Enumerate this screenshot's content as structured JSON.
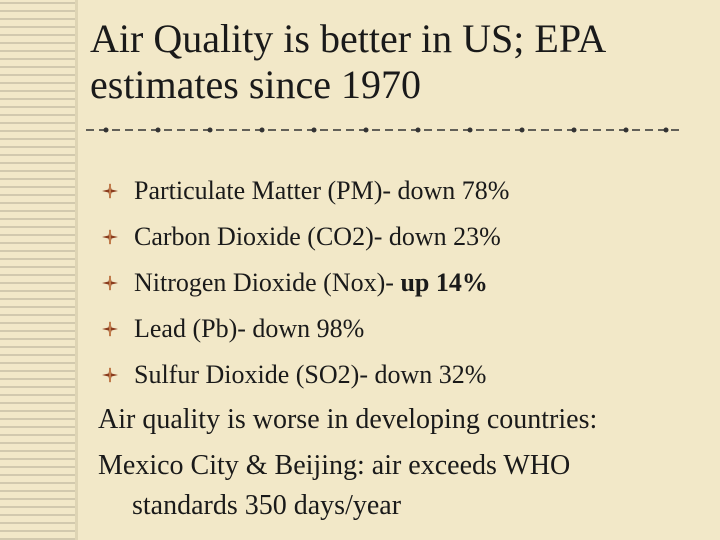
{
  "title": "Air Quality is better in US; EPA estimates since 1970",
  "bullets": [
    {
      "pre": "Particulate Matter (PM)- down 78%",
      "strong": ""
    },
    {
      "pre": "Carbon Dioxide (CO2)- down 23%",
      "strong": ""
    },
    {
      "pre": "Nitrogen Dioxide (Nox)- ",
      "strong": "up 14%"
    },
    {
      "pre": "Lead (Pb)- down 98%",
      "strong": ""
    },
    {
      "pre": "Sulfur Dioxide (SO2)- down 32%",
      "strong": ""
    }
  ],
  "paragraph1": "Air quality is worse in developing countries:",
  "paragraph2_line1": "Mexico City & Beijing: air exceeds WHO",
  "paragraph2_line2": "standards 350 days/year",
  "colors": {
    "background": "#f2e8c8",
    "text": "#1a1a1a",
    "bullet": "#8a3b1c"
  }
}
